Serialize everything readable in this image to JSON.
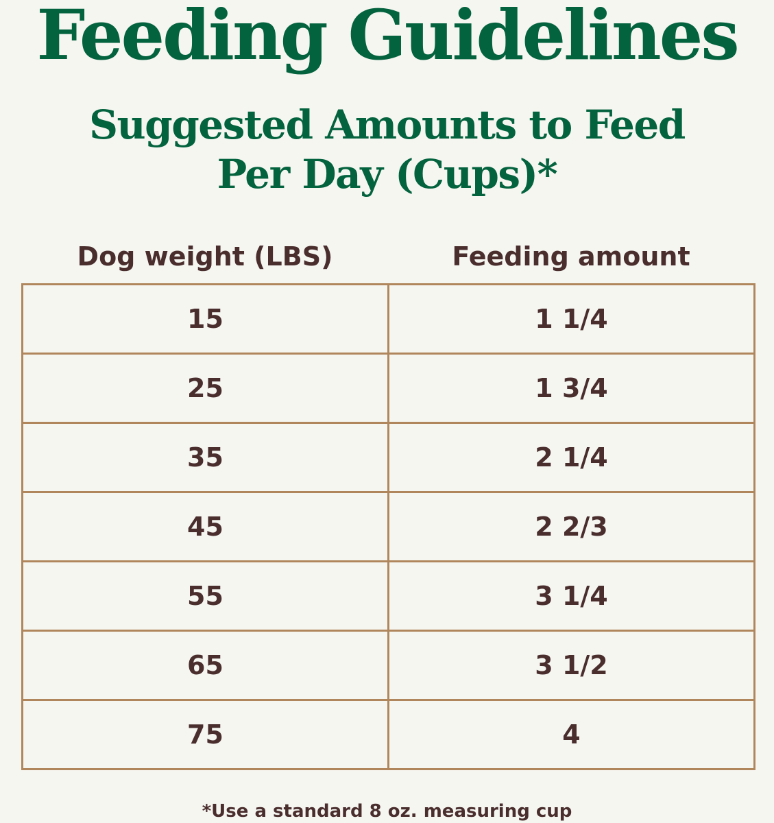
{
  "title": "Feeding Guidelines",
  "subtitle": {
    "line1": "Suggested Amounts to Feed",
    "line2": "Per Day (Cups)*"
  },
  "table": {
    "headers": [
      "Dog weight (LBS)",
      "Feeding amount"
    ],
    "rows": [
      {
        "weight": "15",
        "amount": "1 1/4"
      },
      {
        "weight": "25",
        "amount": "1 3/4"
      },
      {
        "weight": "35",
        "amount": "2 1/4"
      },
      {
        "weight": "45",
        "amount": "2 2/3"
      },
      {
        "weight": "55",
        "amount": "3 1/4"
      },
      {
        "weight": "65",
        "amount": "3 1/2"
      },
      {
        "weight": "75",
        "amount": "4"
      }
    ]
  },
  "footnote": "*Use a standard 8 oz. measuring cup",
  "colors": {
    "heading_green": "#04633f",
    "text_brown": "#4a2e2e",
    "border_tan": "#b0875c",
    "background": "#f6f6f1"
  }
}
